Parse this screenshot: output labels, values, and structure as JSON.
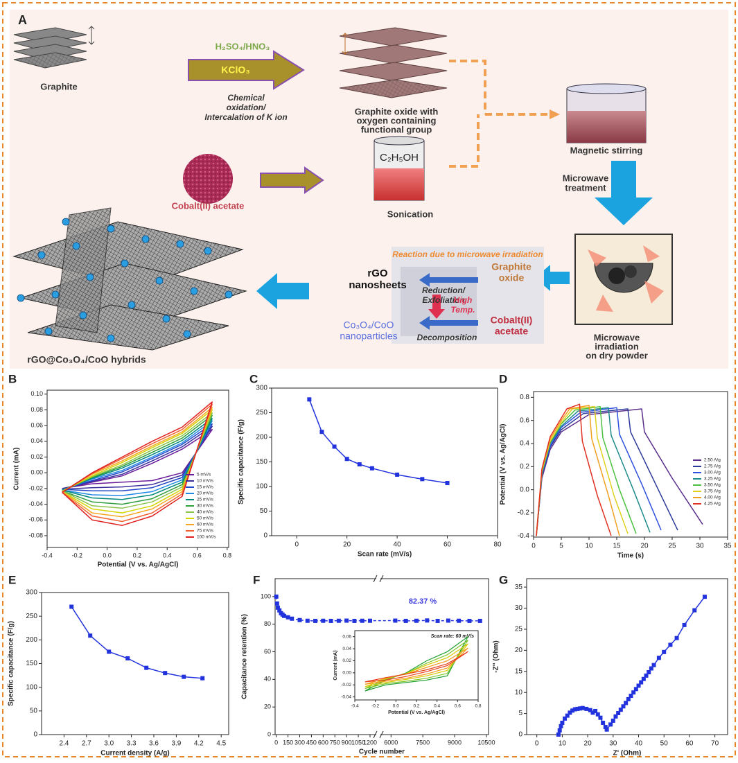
{
  "diagram": {
    "label": "A",
    "graphite": "Graphite",
    "acid": "H₂SO₄/HNO₃",
    "oxidant": "KClO₃",
    "oxidation": [
      "Chemical",
      "oxidation/",
      "Intercalation of K ion"
    ],
    "graphite_oxide": [
      "Graphite oxide with",
      "oxygen containing",
      "functional group"
    ],
    "stirring": "Magnetic stirring",
    "microwave": [
      "Microwave",
      "treatment"
    ],
    "solvent": "C₂H₅OH",
    "sonication": "Sonication",
    "cobalt": "Cobalt(II) acetate",
    "reaction": {
      "title": "Reaction due to microwave irradiation",
      "rgo": [
        "rGO",
        "nanosheets"
      ],
      "go": [
        "Graphite",
        "oxide"
      ],
      "reduction": [
        "Reduction/",
        "Exfoliation"
      ],
      "temp": [
        "High",
        "Temp."
      ],
      "oxides": [
        "Co₃O₄/CoO",
        "nanoparticles"
      ],
      "decomposition": "Decomposition",
      "cobalt": [
        "Cobalt(II)",
        "acetate"
      ]
    },
    "irradiation": [
      "Microwave",
      "irradiation",
      "on dry powder"
    ],
    "hybrid": "rGO@Co₃O₄/CoO hybrids"
  },
  "chart_data": [
    {
      "type": "line",
      "label": "B",
      "xlabel": "Potential (V vs. Ag/AgCl)",
      "ylabel": "Current (mA)",
      "x": [
        -0.3,
        -0.1,
        0.1,
        0.3,
        0.5,
        0.7,
        0.5,
        0.3,
        0.1,
        -0.1,
        -0.3
      ],
      "series": [
        {
          "name": "5 mV/s",
          "color": "#6a1b9a",
          "values": [
            -0.02,
            -0.012,
            -0.004,
            0.012,
            0.03,
            0.055,
            0.0,
            -0.01,
            -0.012,
            -0.014,
            -0.02
          ]
        },
        {
          "name": "10 mV/s",
          "color": "#3b2f9e",
          "values": [
            -0.021,
            -0.011,
            -0.002,
            0.015,
            0.033,
            0.059,
            -0.003,
            -0.015,
            -0.018,
            -0.019,
            -0.021
          ]
        },
        {
          "name": "15 mV/s",
          "color": "#2046c8",
          "values": [
            -0.021,
            -0.01,
            0.001,
            0.018,
            0.036,
            0.062,
            -0.006,
            -0.019,
            -0.023,
            -0.023,
            -0.021
          ]
        },
        {
          "name": "20 mV/s",
          "color": "#1e88e5",
          "values": [
            -0.022,
            -0.008,
            0.003,
            0.02,
            0.038,
            0.066,
            -0.009,
            -0.024,
            -0.029,
            -0.028,
            -0.022
          ]
        },
        {
          "name": "25 mV/s",
          "color": "#00897b",
          "values": [
            -0.022,
            -0.007,
            0.006,
            0.023,
            0.041,
            0.069,
            -0.012,
            -0.028,
            -0.034,
            -0.032,
            -0.022
          ]
        },
        {
          "name": "30 mV/s",
          "color": "#2e9e3a",
          "values": [
            -0.023,
            -0.006,
            0.008,
            0.026,
            0.044,
            0.073,
            -0.015,
            -0.033,
            -0.04,
            -0.037,
            -0.023
          ]
        },
        {
          "name": "40 mV/s",
          "color": "#8bc34a",
          "values": [
            -0.023,
            -0.005,
            0.01,
            0.029,
            0.047,
            0.076,
            -0.018,
            -0.037,
            -0.045,
            -0.042,
            -0.023
          ]
        },
        {
          "name": "50 mV/s",
          "color": "#d4d400",
          "values": [
            -0.024,
            -0.004,
            0.013,
            0.032,
            0.05,
            0.08,
            -0.021,
            -0.042,
            -0.051,
            -0.046,
            -0.024
          ]
        },
        {
          "name": "60 mV/s",
          "color": "#f5a623",
          "values": [
            -0.024,
            -0.002,
            0.015,
            0.034,
            0.052,
            0.083,
            -0.024,
            -0.046,
            -0.056,
            -0.051,
            -0.024
          ]
        },
        {
          "name": "75 mV/s",
          "color": "#f06030",
          "values": [
            -0.025,
            -0.001,
            0.018,
            0.037,
            0.055,
            0.087,
            -0.027,
            -0.051,
            -0.062,
            -0.055,
            -0.025
          ]
        },
        {
          "name": "100 mV/s",
          "color": "#e02020",
          "values": [
            -0.025,
            0.0,
            0.02,
            0.04,
            0.058,
            0.09,
            -0.03,
            -0.055,
            -0.067,
            -0.06,
            -0.025
          ]
        }
      ],
      "xlim": [
        -0.4,
        0.81
      ],
      "xticks": [
        -0.4,
        -0.2,
        {
          "value": 0,
          "label": "0.0"
        },
        0.2,
        0.4,
        0.6,
        0.8
      ],
      "ylim": [
        -0.095,
        0.105
      ],
      "yticks": [
        -0.08,
        -0.06,
        -0.04,
        -0.02,
        {
          "value": 0,
          "label": "0.00"
        },
        0.02,
        0.04,
        0.06,
        0.08,
        {
          "value": 0.1,
          "label": "0.10"
        }
      ],
      "legend": "lower right",
      "grid": false
    },
    {
      "type": "line",
      "label": "C",
      "xlabel": "Scan rate (mV/s)",
      "ylabel": "Specific capacitance (F/g)",
      "x": [
        5,
        10,
        15,
        20,
        25,
        30,
        40,
        50,
        60
      ],
      "values": [
        277,
        211,
        181,
        156,
        145,
        137,
        124,
        115,
        107
      ],
      "color": "#2233dd",
      "marker": "square",
      "xlim": [
        -10,
        80
      ],
      "xticks": [
        0,
        20,
        40,
        60,
        80
      ],
      "ylim": [
        0,
        300
      ],
      "yticks": [
        0,
        50,
        100,
        150,
        200,
        250,
        300
      ],
      "grid": false
    },
    {
      "type": "line",
      "label": "D",
      "xlabel": "Time (s)",
      "ylabel": "Potential (V vs. Ag/AgCl)",
      "series": [
        {
          "name": "2.50 A/g",
          "color": "#5a2d8c",
          "x": [
            0.5,
            1.5,
            3,
            5,
            10,
            19.5,
            20,
            25,
            30.5
          ],
          "values": [
            -0.4,
            0.1,
            0.35,
            0.5,
            0.65,
            0.7,
            0.5,
            0.1,
            -0.3
          ]
        },
        {
          "name": "2.75 A/g",
          "color": "#2b3a9a",
          "x": [
            0.5,
            1.5,
            3,
            5,
            9,
            17,
            17.5,
            22,
            26
          ],
          "values": [
            -0.4,
            0.12,
            0.37,
            0.52,
            0.66,
            0.7,
            0.5,
            0.05,
            -0.35
          ]
        },
        {
          "name": "3.00 A/g",
          "color": "#3050e0",
          "x": [
            0.5,
            1.5,
            3,
            5,
            8.5,
            15,
            15.5,
            19.5,
            23
          ],
          "values": [
            -0.4,
            0.13,
            0.38,
            0.54,
            0.67,
            0.71,
            0.48,
            0.05,
            -0.35
          ]
        },
        {
          "name": "3.25 A/g",
          "color": "#1e8a8a",
          "x": [
            0.5,
            1.5,
            3,
            5,
            8,
            13.5,
            14,
            18,
            21
          ],
          "values": [
            -0.4,
            0.14,
            0.4,
            0.55,
            0.68,
            0.71,
            0.47,
            0.0,
            -0.37
          ]
        },
        {
          "name": "3.50 A/g",
          "color": "#4cc040",
          "x": [
            0.5,
            1.5,
            3,
            5,
            7.5,
            12,
            12.5,
            15.5,
            18.5
          ],
          "values": [
            -0.4,
            0.15,
            0.41,
            0.57,
            0.69,
            0.72,
            0.45,
            0.0,
            -0.38
          ]
        },
        {
          "name": "3.75 A/g",
          "color": "#e0d020",
          "x": [
            0.5,
            1.5,
            3,
            5,
            7,
            11,
            11.5,
            14.5,
            17
          ],
          "values": [
            -0.4,
            0.16,
            0.42,
            0.58,
            0.7,
            0.72,
            0.45,
            -0.05,
            -0.38
          ]
        },
        {
          "name": "4.00 A/g",
          "color": "#f0a020",
          "x": [
            0.5,
            1.5,
            3,
            5,
            6.5,
            10,
            10.5,
            13.5,
            15.5
          ],
          "values": [
            -0.4,
            0.17,
            0.44,
            0.6,
            0.7,
            0.73,
            0.44,
            -0.05,
            -0.4
          ]
        },
        {
          "name": "4.25 A/g",
          "color": "#e03020",
          "x": [
            0.5,
            1.5,
            3,
            5,
            6,
            8.3,
            8.8,
            11.5,
            14
          ],
          "values": [
            -0.4,
            0.18,
            0.46,
            0.62,
            0.7,
            0.74,
            0.42,
            -0.05,
            -0.4
          ]
        }
      ],
      "xlim": [
        0,
        35
      ],
      "xticks": [
        0,
        5,
        10,
        15,
        20,
        25,
        30,
        35
      ],
      "ylim": [
        -0.41,
        0.85
      ],
      "yticks": [
        -0.4,
        -0.2,
        {
          "value": 0,
          "label": "0.0"
        },
        0.2,
        0.4,
        0.6,
        0.8
      ],
      "legend": "right",
      "grid": false
    },
    {
      "type": "line",
      "label": "E",
      "xlabel": "Current density (A/g)",
      "ylabel": "Specific capacitance (F/g)",
      "x": [
        2.5,
        2.75,
        3,
        3.25,
        3.5,
        3.75,
        4,
        4.25
      ],
      "values": [
        270,
        209,
        175,
        161,
        141,
        130,
        122,
        119
      ],
      "color": "#2233dd",
      "marker": "square",
      "xlim": [
        2.1,
        4.6
      ],
      "xticks": [
        2.4,
        2.7,
        {
          "value": 3,
          "label": "3.0"
        },
        3.3,
        3.6,
        3.9,
        4.2,
        4.5
      ],
      "ylim": [
        0,
        300
      ],
      "yticks": [
        0,
        50,
        100,
        150,
        200,
        250,
        300
      ],
      "grid": false
    },
    {
      "type": "line",
      "label": "F",
      "xlabel": "Cycle number",
      "ylabel": "Capacitance retention (%)",
      "annotation": "82.37 %",
      "x": [
        0,
        10,
        20,
        40,
        60,
        80,
        100,
        150,
        200,
        300,
        400,
        500,
        600,
        700,
        800,
        900,
        1000,
        1100,
        1200,
        6200,
        6700,
        7200,
        7700,
        8200,
        8700,
        9200,
        9700,
        10200
      ],
      "values": [
        100,
        95,
        92,
        90,
        88,
        87,
        86,
        85,
        84,
        83,
        82.5,
        82.4,
        82.5,
        82.4,
        82.5,
        82.6,
        82.4,
        82.5,
        82.5,
        82.6,
        82.4,
        82.5,
        82.7,
        82.4,
        82.6,
        82.5,
        82.4,
        82.4
      ],
      "color": "#2233dd",
      "marker": "square",
      "line_style": "dashed",
      "xlim": [
        -15,
        10600
      ],
      "xbreak": [
        1280,
        5500
      ],
      "xticks": [
        0,
        150,
        300,
        450,
        600,
        750,
        900,
        1050,
        1200,
        6000,
        7500,
        9000,
        10500
      ],
      "ylim": [
        0,
        113
      ],
      "yticks": [
        0,
        20,
        40,
        60,
        80,
        100
      ],
      "grid": false
    },
    {
      "type": "line",
      "label": "G",
      "xlabel": "Z' (Ohm)",
      "ylabel": "-Z'' (Ohm)",
      "x": [
        8.5,
        9,
        9.5,
        10,
        11,
        12,
        13,
        14,
        15,
        16,
        17,
        18,
        19.5,
        21,
        22,
        23,
        24,
        25,
        26,
        27,
        27.5,
        29,
        30,
        31,
        32,
        33,
        34,
        35,
        36,
        37,
        38,
        39,
        40,
        41,
        42,
        43,
        44,
        45,
        46,
        48,
        50,
        52.5,
        55,
        58,
        62,
        66
      ],
      "values": [
        0,
        1,
        2,
        2.8,
        3.8,
        4.5,
        5.2,
        5.7,
        6.0,
        6.1,
        6.2,
        6.3,
        6.1,
        5.8,
        5.2,
        5.6,
        4.8,
        4.0,
        2.8,
        1.8,
        1.2,
        2.4,
        3.3,
        4.3,
        5.1,
        5.9,
        6.7,
        7.5,
        8.4,
        9.2,
        10.0,
        10.8,
        11.6,
        12.4,
        13.2,
        14.0,
        14.8,
        15.7,
        16.5,
        18.2,
        19.6,
        21.3,
        22.9,
        26.0,
        29.5,
        32.7
      ],
      "color": "#2233dd",
      "marker": "square",
      "xlim": [
        -4,
        75
      ],
      "xticks": [
        0,
        10,
        20,
        30,
        40,
        50,
        60,
        70
      ],
      "ylim": [
        0,
        37
      ],
      "yticks": [
        0,
        5,
        10,
        15,
        20,
        25,
        30,
        35
      ],
      "grid": false
    },
    {
      "type": "line",
      "title": "Scan rate: 60 mV/s",
      "xlabel": "Potential (V vs. Ag/AgCl)",
      "ylabel": "Current (mA)",
      "x": [
        -0.3,
        -0.1,
        0.1,
        0.3,
        0.5,
        0.7,
        0.5,
        0.3,
        0.1,
        -0.1,
        -0.3
      ],
      "series": [
        {
          "color": "#1a9e2a",
          "values": [
            -0.03,
            -0.012,
            0.0,
            0.02,
            0.035,
            0.06,
            -0.005,
            -0.012,
            -0.016,
            -0.02,
            -0.03
          ]
        },
        {
          "color": "#7cc428",
          "values": [
            -0.026,
            -0.011,
            -0.001,
            0.016,
            0.03,
            0.054,
            -0.001,
            -0.009,
            -0.014,
            -0.018,
            -0.026
          ]
        },
        {
          "color": "#d8c800",
          "values": [
            -0.023,
            -0.01,
            -0.001,
            0.013,
            0.025,
            0.048,
            0.004,
            -0.005,
            -0.011,
            -0.016,
            -0.023
          ]
        },
        {
          "color": "#f59a1a",
          "values": [
            -0.019,
            -0.009,
            -0.002,
            0.009,
            0.02,
            0.041,
            0.008,
            -0.002,
            -0.009,
            -0.014,
            -0.019
          ]
        },
        {
          "color": "#e8401a",
          "values": [
            -0.015,
            -0.008,
            -0.002,
            0.005,
            0.015,
            0.035,
            0.012,
            0.002,
            -0.006,
            -0.012,
            -0.015
          ]
        }
      ],
      "xlim": [
        -0.4,
        0.8
      ],
      "xticks": [
        -0.4,
        -0.2,
        {
          "value": 0,
          "label": "0.0"
        },
        0.2,
        0.4,
        0.6,
        0.8
      ],
      "ylim": [
        -0.045,
        0.07
      ],
      "yticks": [
        -0.04,
        -0.02,
        {
          "value": 0,
          "label": "0.00"
        },
        0.02,
        0.04,
        0.06
      ],
      "grid": false
    }
  ]
}
